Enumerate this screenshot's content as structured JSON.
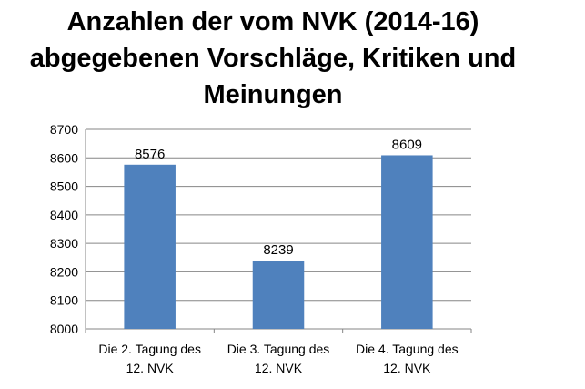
{
  "chart_data": {
    "type": "bar",
    "title_lines": [
      "Anzahlen der vom NVK (2014-16)",
      "abgegebenen Vorschläge, Kritiken und",
      "Meinungen"
    ],
    "categories": [
      [
        "Die 2. Tagung des",
        "12. NVK"
      ],
      [
        "Die 3. Tagung des",
        "12. NVK"
      ],
      [
        "Die 4. Tagung des",
        "12. NVK"
      ]
    ],
    "values": [
      8576,
      8239,
      8609
    ],
    "data_labels": [
      "8576",
      "8239",
      "8609"
    ],
    "ylim": [
      8000,
      8700
    ],
    "yticks": [
      8000,
      8100,
      8200,
      8300,
      8400,
      8500,
      8600,
      8700
    ],
    "grid": true,
    "legend": "none",
    "bar_color": "#4f81bd",
    "grid_color": "#868686"
  }
}
